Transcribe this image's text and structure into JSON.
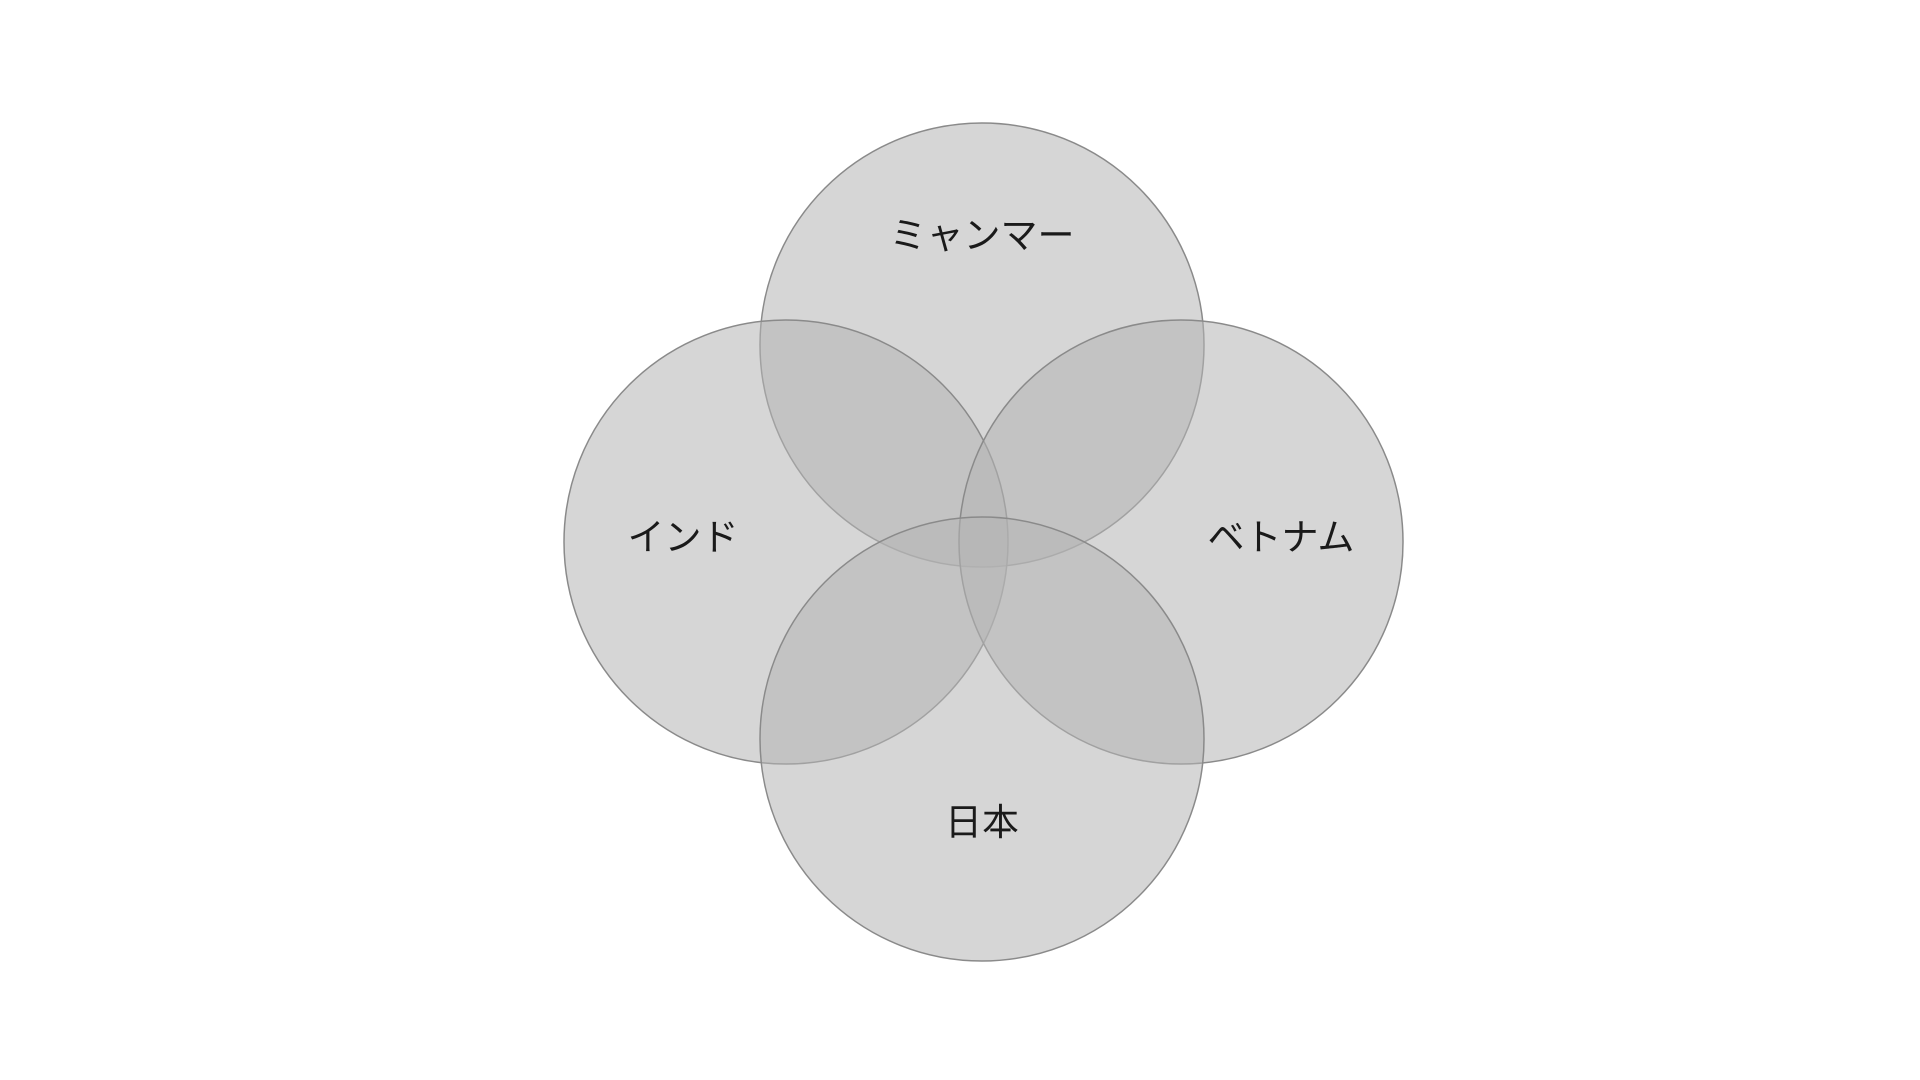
{
  "diagram": {
    "type": "venn",
    "fill_color": "#b4b4b4",
    "stroke_color": "#8a8a8a",
    "sets": [
      {
        "label": "ミャンマー"
      },
      {
        "label": "インド"
      },
      {
        "label": "ベトナム"
      },
      {
        "label": "日本"
      }
    ]
  }
}
